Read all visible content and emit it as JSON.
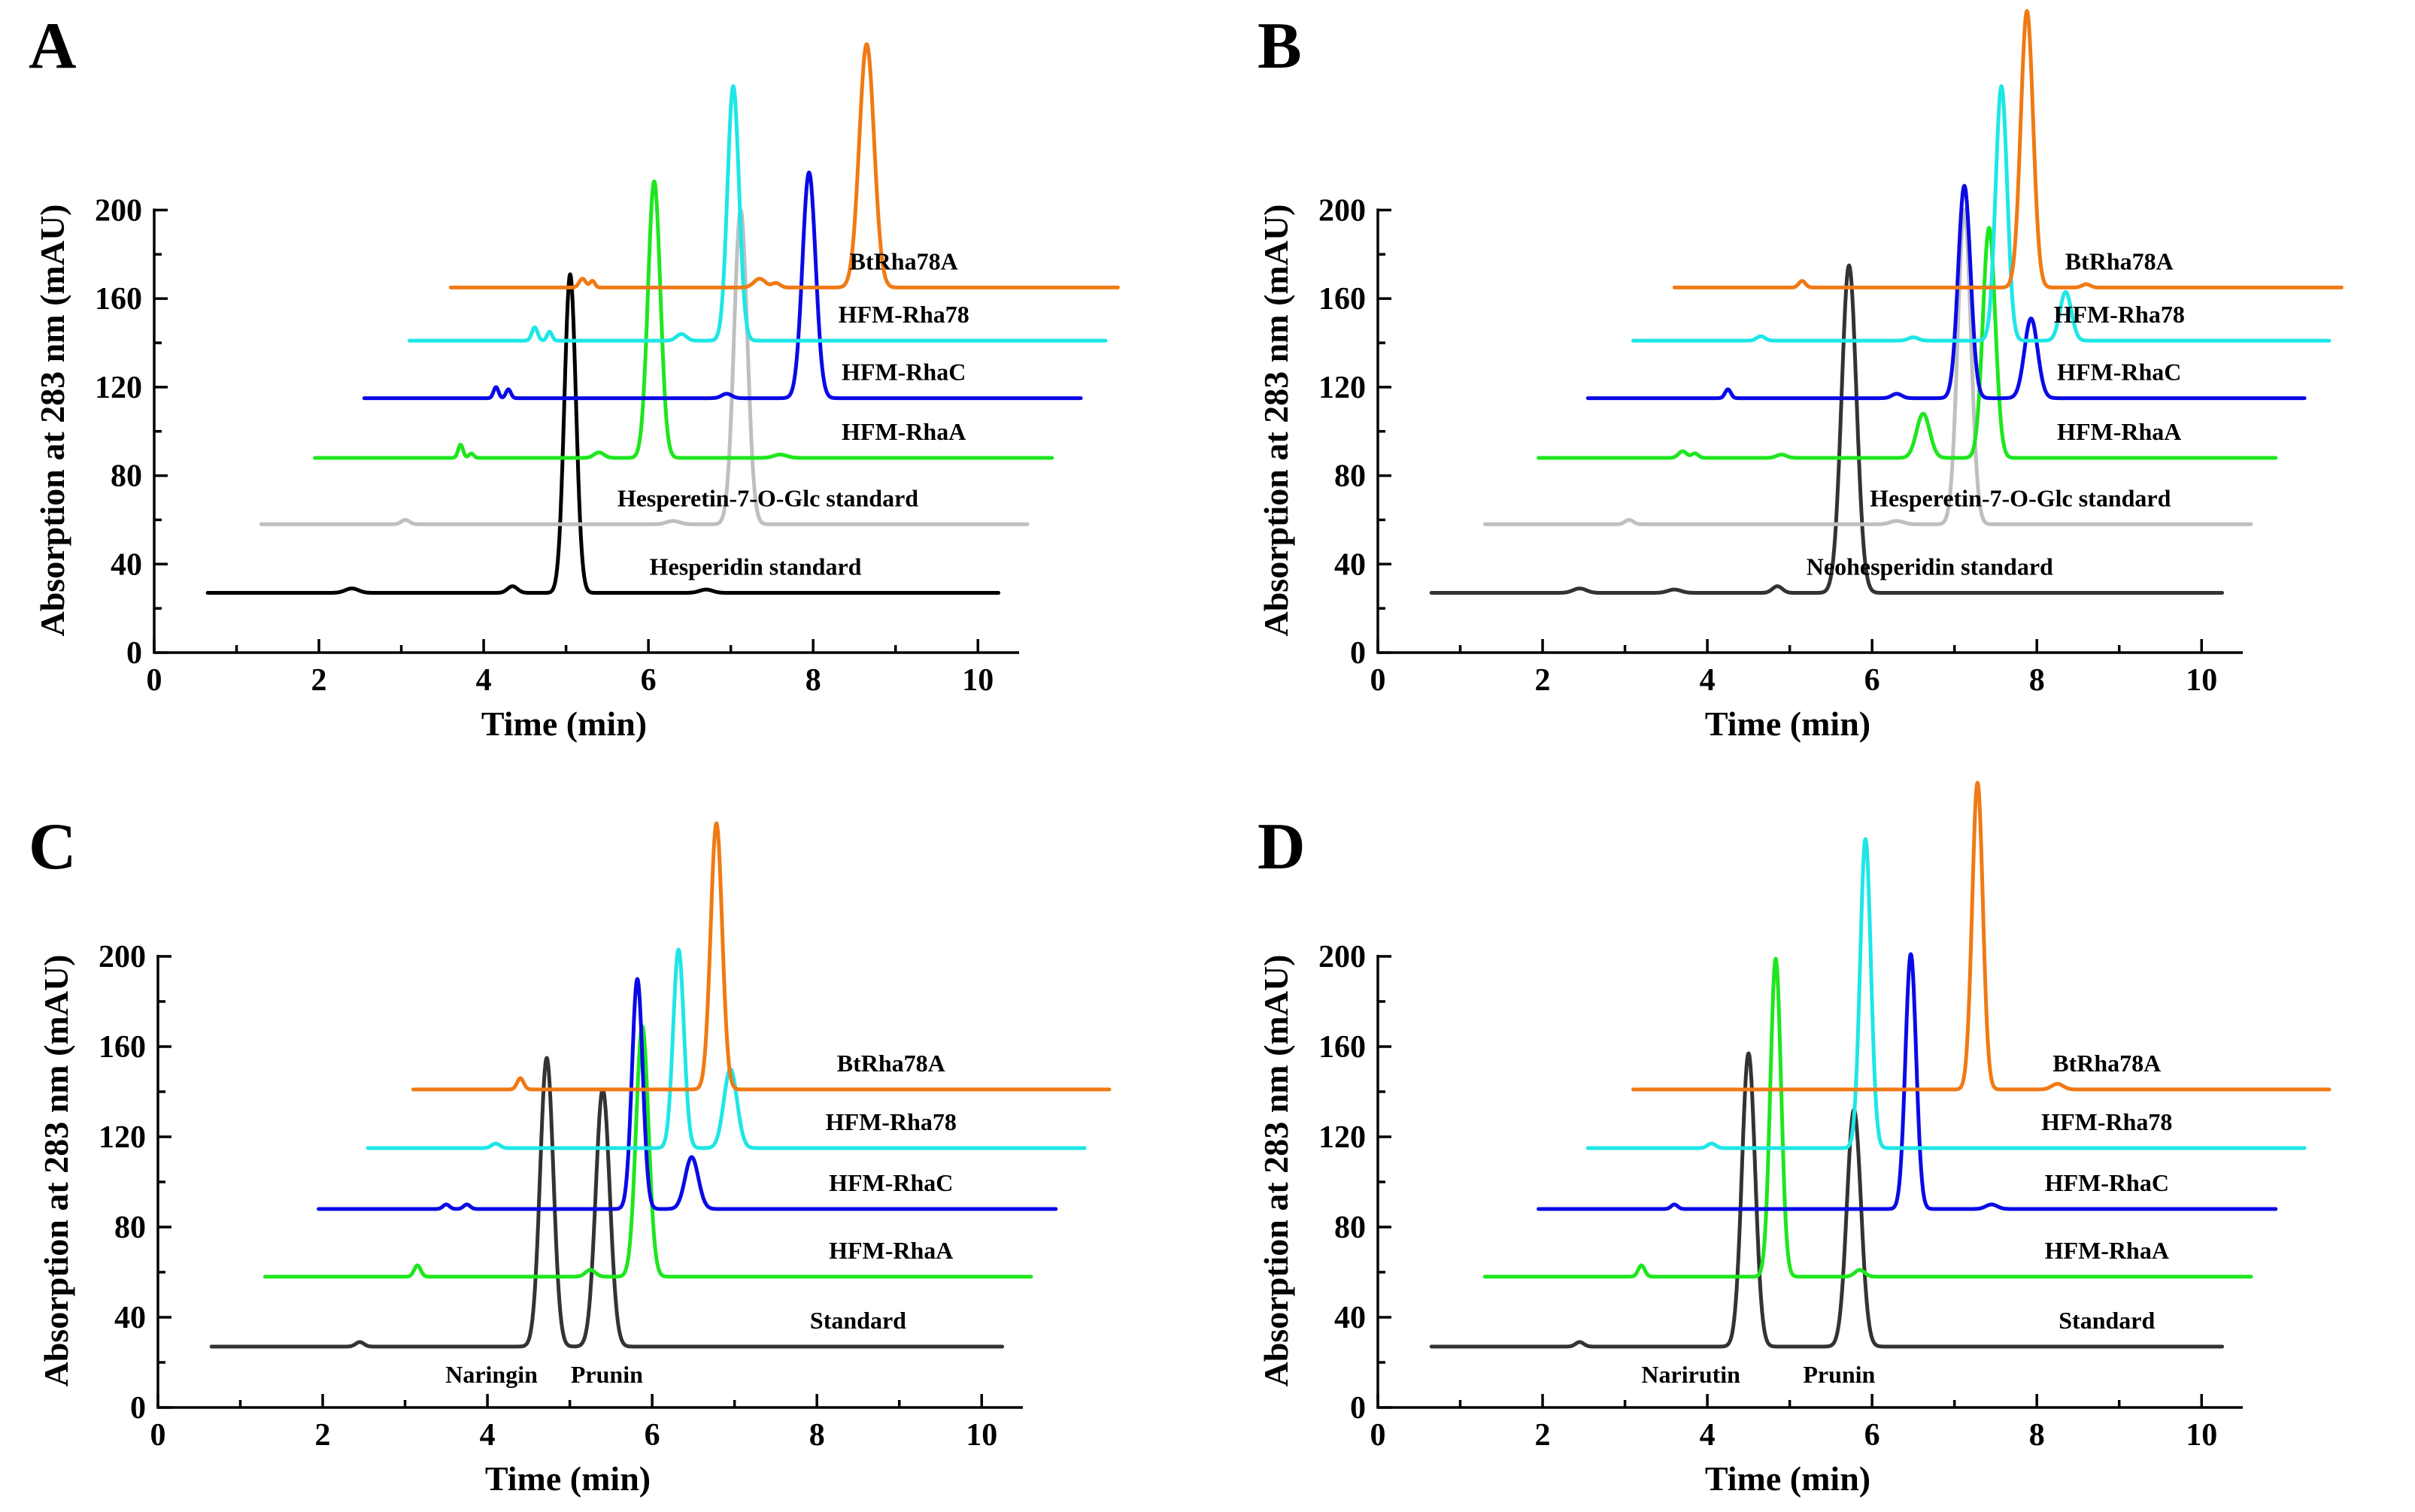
{
  "chart_data": [
    {
      "type": "line",
      "panel": "A",
      "xlabel": "Time (min)",
      "ylabel": "Absorption at 283 nm (mAU)",
      "xlim": [
        0,
        10.5
      ],
      "ylim": [
        0,
        210
      ],
      "xticks": [
        0,
        2,
        4,
        6,
        8,
        10
      ],
      "yticks": [
        0,
        40,
        80,
        120,
        160,
        200
      ],
      "series": [
        {
          "name": "Hesperidin standard",
          "color": "#000000",
          "x_start": 0.65,
          "x_end": 10.25,
          "baseline": 27,
          "label_x": 7.3,
          "peaks": [
            {
              "t": 5.05,
              "h": 144,
              "w": 0.07
            },
            {
              "t": 2.4,
              "h": 2,
              "w": 0.08
            },
            {
              "t": 4.35,
              "h": 3,
              "w": 0.06
            },
            {
              "t": 6.7,
              "h": 1.5,
              "w": 0.08
            }
          ]
        },
        {
          "name": "Hesperetin-7-O-Glc standard",
          "color": "#bfbfbf",
          "x_start": 1.3,
          "x_end": 10.6,
          "baseline": 58,
          "label_x": 7.45,
          "peaks": [
            {
              "t": 7.12,
              "h": 142,
              "w": 0.08
            },
            {
              "t": 3.05,
              "h": 2,
              "w": 0.05
            },
            {
              "t": 6.3,
              "h": 1.5,
              "w": 0.08
            }
          ]
        },
        {
          "name": "HFM-RhaA",
          "color": "#1ee61e",
          "x_start": 1.95,
          "x_end": 10.9,
          "baseline": 88,
          "label_x": 9.1,
          "peaks": [
            {
              "t": 6.07,
              "h": 125,
              "w": 0.075
            },
            {
              "t": 3.72,
              "h": 6,
              "w": 0.03
            },
            {
              "t": 3.85,
              "h": 2,
              "w": 0.03
            },
            {
              "t": 5.4,
              "h": 2.5,
              "w": 0.06
            },
            {
              "t": 7.6,
              "h": 1.5,
              "w": 0.08
            }
          ]
        },
        {
          "name": "HFM-RhaC",
          "color": "#0a0ae6",
          "x_start": 2.55,
          "x_end": 11.25,
          "baseline": 115,
          "label_x": 9.1,
          "peaks": [
            {
              "t": 7.95,
              "h": 102,
              "w": 0.08
            },
            {
              "t": 4.15,
              "h": 5,
              "w": 0.03
            },
            {
              "t": 4.3,
              "h": 4,
              "w": 0.03
            },
            {
              "t": 6.95,
              "h": 2,
              "w": 0.06
            }
          ]
        },
        {
          "name": "HFM-Rha78",
          "color": "#1ee6e6",
          "x_start": 3.1,
          "x_end": 11.55,
          "baseline": 141,
          "label_x": 9.1,
          "peaks": [
            {
              "t": 7.03,
              "h": 115,
              "w": 0.07
            },
            {
              "t": 4.62,
              "h": 6,
              "w": 0.035
            },
            {
              "t": 4.8,
              "h": 4,
              "w": 0.03
            },
            {
              "t": 6.4,
              "h": 3,
              "w": 0.06
            }
          ]
        },
        {
          "name": "BtRha78A",
          "color": "#f07a14",
          "x_start": 3.6,
          "x_end": 11.7,
          "baseline": 165,
          "label_x": 9.1,
          "peaks": [
            {
              "t": 8.65,
              "h": 110,
              "w": 0.09
            },
            {
              "t": 5.2,
              "h": 4,
              "w": 0.04
            },
            {
              "t": 5.32,
              "h": 3,
              "w": 0.03
            },
            {
              "t": 7.35,
              "h": 4,
              "w": 0.07
            },
            {
              "t": 7.55,
              "h": 2,
              "w": 0.05
            }
          ]
        }
      ]
    },
    {
      "type": "line",
      "panel": "B",
      "xlabel": "Time (min)",
      "ylabel": "Absorption at 283 nm (mAU)",
      "xlim": [
        0,
        10.5
      ],
      "ylim": [
        0,
        210
      ],
      "xticks": [
        0,
        2,
        4,
        6,
        8,
        10
      ],
      "yticks": [
        0,
        40,
        80,
        120,
        160,
        200
      ],
      "series": [
        {
          "name": "Neohesperidin standard",
          "color": "#333333",
          "x_start": 0.65,
          "x_end": 10.25,
          "baseline": 27,
          "label_x": 6.7,
          "peaks": [
            {
              "t": 5.72,
              "h": 148,
              "w": 0.09
            },
            {
              "t": 2.45,
              "h": 2,
              "w": 0.08
            },
            {
              "t": 4.85,
              "h": 3,
              "w": 0.06
            },
            {
              "t": 3.6,
              "h": 1.5,
              "w": 0.08
            }
          ]
        },
        {
          "name": "Hesperetin-7-O-Glc standard",
          "color": "#bfbfbf",
          "x_start": 1.3,
          "x_end": 10.6,
          "baseline": 58,
          "label_x": 7.8,
          "peaks": [
            {
              "t": 7.12,
              "h": 142,
              "w": 0.08
            },
            {
              "t": 3.05,
              "h": 2,
              "w": 0.05
            },
            {
              "t": 6.3,
              "h": 1.5,
              "w": 0.08
            }
          ]
        },
        {
          "name": "HFM-RhaA",
          "color": "#1ee61e",
          "x_start": 1.95,
          "x_end": 10.9,
          "baseline": 88,
          "label_x": 9.0,
          "peaks": [
            {
              "t": 7.42,
              "h": 104,
              "w": 0.075
            },
            {
              "t": 6.62,
              "h": 20,
              "w": 0.08
            },
            {
              "t": 3.7,
              "h": 3,
              "w": 0.05
            },
            {
              "t": 3.85,
              "h": 2,
              "w": 0.04
            },
            {
              "t": 4.9,
              "h": 1.5,
              "w": 0.06
            }
          ]
        },
        {
          "name": "HFM-RhaC",
          "color": "#0a0ae6",
          "x_start": 2.55,
          "x_end": 11.25,
          "baseline": 115,
          "label_x": 9.0,
          "peaks": [
            {
              "t": 7.12,
              "h": 96,
              "w": 0.075
            },
            {
              "t": 7.93,
              "h": 36,
              "w": 0.08
            },
            {
              "t": 4.25,
              "h": 4,
              "w": 0.035
            },
            {
              "t": 6.3,
              "h": 2,
              "w": 0.06
            }
          ]
        },
        {
          "name": "HFM-Rha78",
          "color": "#1ee6e6",
          "x_start": 3.1,
          "x_end": 11.55,
          "baseline": 141,
          "label_x": 9.0,
          "peaks": [
            {
              "t": 7.57,
              "h": 115,
              "w": 0.07
            },
            {
              "t": 8.35,
              "h": 22,
              "w": 0.07
            },
            {
              "t": 4.65,
              "h": 2,
              "w": 0.05
            },
            {
              "t": 6.5,
              "h": 1.5,
              "w": 0.06
            }
          ]
        },
        {
          "name": "BtRha78A",
          "color": "#f07a14",
          "x_start": 3.6,
          "x_end": 11.7,
          "baseline": 165,
          "label_x": 9.0,
          "peaks": [
            {
              "t": 7.88,
              "h": 125,
              "w": 0.075
            },
            {
              "t": 5.15,
              "h": 3,
              "w": 0.04
            },
            {
              "t": 8.6,
              "h": 1.5,
              "w": 0.05
            }
          ]
        }
      ]
    },
    {
      "type": "line",
      "panel": "C",
      "xlabel": "Time (min)",
      "ylabel": "Absorption at 283 nm (mAU)",
      "xlim": [
        0,
        10.5
      ],
      "ylim": [
        0,
        210
      ],
      "xticks": [
        0,
        2,
        4,
        6,
        8,
        10
      ],
      "yticks": [
        0,
        40,
        80,
        120,
        160,
        200
      ],
      "peak_labels": [
        {
          "text": "Naringin",
          "x": 4.05,
          "y": 15
        },
        {
          "text": "Prunin",
          "x": 5.45,
          "y": 15
        }
      ],
      "series": [
        {
          "name": "Standard",
          "color": "#333333",
          "x_start": 0.65,
          "x_end": 10.25,
          "baseline": 27,
          "label_x": 8.5,
          "peaks": [
            {
              "t": 4.72,
              "h": 128,
              "w": 0.08
            },
            {
              "t": 5.4,
              "h": 114,
              "w": 0.085
            },
            {
              "t": 2.45,
              "h": 2,
              "w": 0.05
            }
          ]
        },
        {
          "name": "HFM-RhaA",
          "color": "#1ee61e",
          "x_start": 1.3,
          "x_end": 10.6,
          "baseline": 58,
          "label_x": 8.9,
          "peaks": [
            {
              "t": 5.88,
              "h": 111,
              "w": 0.075
            },
            {
              "t": 3.15,
              "h": 5,
              "w": 0.04
            },
            {
              "t": 5.25,
              "h": 3,
              "w": 0.06
            }
          ]
        },
        {
          "name": "HFM-RhaC",
          "color": "#0a0ae6",
          "x_start": 1.95,
          "x_end": 10.9,
          "baseline": 88,
          "label_x": 8.9,
          "peaks": [
            {
              "t": 5.82,
              "h": 102,
              "w": 0.065
            },
            {
              "t": 6.48,
              "h": 23,
              "w": 0.08
            },
            {
              "t": 3.5,
              "h": 2,
              "w": 0.04
            },
            {
              "t": 3.75,
              "h": 2,
              "w": 0.04
            }
          ]
        },
        {
          "name": "HFM-Rha78",
          "color": "#1ee6e6",
          "x_start": 2.55,
          "x_end": 11.25,
          "baseline": 115,
          "label_x": 8.9,
          "peaks": [
            {
              "t": 6.32,
              "h": 88,
              "w": 0.065
            },
            {
              "t": 6.95,
              "h": 35,
              "w": 0.08
            },
            {
              "t": 4.1,
              "h": 2,
              "w": 0.05
            }
          ]
        },
        {
          "name": "BtRha78A",
          "color": "#f07a14",
          "x_start": 3.1,
          "x_end": 11.55,
          "baseline": 141,
          "label_x": 8.9,
          "peaks": [
            {
              "t": 6.78,
              "h": 118,
              "w": 0.07
            },
            {
              "t": 4.4,
              "h": 5,
              "w": 0.04
            }
          ]
        }
      ]
    },
    {
      "type": "line",
      "panel": "D",
      "xlabel": "Time (min)",
      "ylabel": "Absorption at 283 nm (mAU)",
      "xlim": [
        0,
        10.5
      ],
      "ylim": [
        0,
        210
      ],
      "xticks": [
        0,
        2,
        4,
        6,
        8,
        10
      ],
      "yticks": [
        0,
        40,
        80,
        120,
        160,
        200
      ],
      "peak_labels": [
        {
          "text": "Narirutin",
          "x": 3.8,
          "y": 15
        },
        {
          "text": "Prunin",
          "x": 5.6,
          "y": 15
        }
      ],
      "series": [
        {
          "name": "Standard",
          "color": "#333333",
          "x_start": 0.65,
          "x_end": 10.25,
          "baseline": 27,
          "label_x": 8.85,
          "peaks": [
            {
              "t": 4.5,
              "h": 130,
              "w": 0.08
            },
            {
              "t": 5.78,
              "h": 105,
              "w": 0.085
            },
            {
              "t": 2.45,
              "h": 2,
              "w": 0.05
            }
          ]
        },
        {
          "name": "HFM-RhaA",
          "color": "#1ee61e",
          "x_start": 1.3,
          "x_end": 10.6,
          "baseline": 58,
          "label_x": 8.85,
          "peaks": [
            {
              "t": 4.83,
              "h": 141,
              "w": 0.065
            },
            {
              "t": 3.2,
              "h": 5,
              "w": 0.04
            },
            {
              "t": 5.85,
              "h": 3,
              "w": 0.06
            }
          ]
        },
        {
          "name": "HFM-RhaC",
          "color": "#0a0ae6",
          "x_start": 1.95,
          "x_end": 10.9,
          "baseline": 88,
          "label_x": 8.85,
          "peaks": [
            {
              "t": 6.47,
              "h": 113,
              "w": 0.065
            },
            {
              "t": 3.6,
              "h": 2,
              "w": 0.04
            },
            {
              "t": 7.45,
              "h": 2,
              "w": 0.07
            }
          ]
        },
        {
          "name": "HFM-Rha78",
          "color": "#1ee6e6",
          "x_start": 2.55,
          "x_end": 11.25,
          "baseline": 115,
          "label_x": 8.85,
          "peaks": [
            {
              "t": 5.92,
              "h": 137,
              "w": 0.065
            },
            {
              "t": 4.05,
              "h": 2,
              "w": 0.05
            }
          ]
        },
        {
          "name": "BtRha78A",
          "color": "#f07a14",
          "x_start": 3.1,
          "x_end": 11.55,
          "baseline": 141,
          "label_x": 8.85,
          "peaks": [
            {
              "t": 7.28,
              "h": 136,
              "w": 0.065
            },
            {
              "t": 8.25,
              "h": 2.5,
              "w": 0.07
            }
          ]
        }
      ]
    }
  ]
}
